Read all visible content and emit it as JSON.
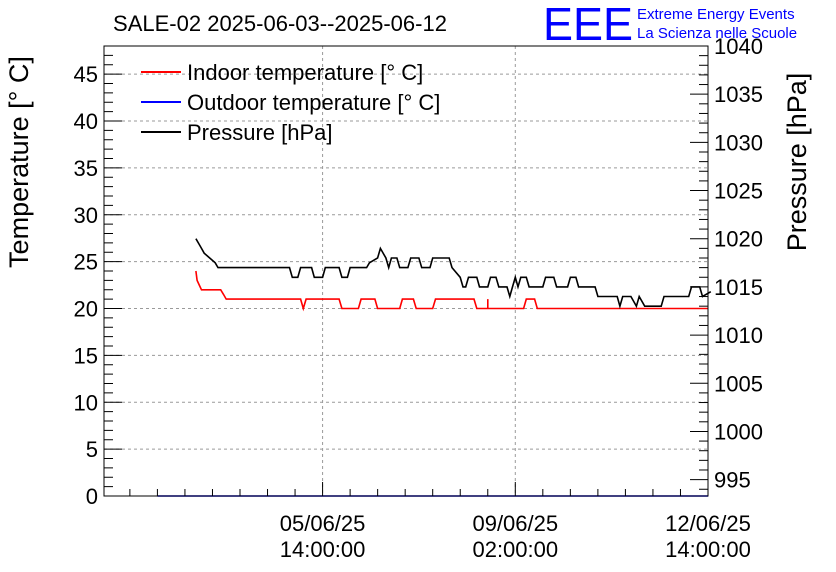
{
  "chart_data": {
    "type": "line",
    "title": "SALE-02 2025-06-03--2025-06-12",
    "ylabel": "Temperature [° C]",
    "y2label": "Pressure [hPa]",
    "ylim": [
      0,
      48
    ],
    "y2lim": [
      993.3,
      1040
    ],
    "yticks": [
      0,
      5,
      10,
      15,
      20,
      25,
      30,
      35,
      40,
      45
    ],
    "y2ticks": [
      995,
      1000,
      1005,
      1010,
      1015,
      1020,
      1025,
      1030,
      1035,
      1040
    ],
    "xlim": [
      -1.97,
      9.0
    ],
    "xticks": [
      {
        "x": 2.0,
        "date": "05/06/25",
        "time": "14:00:00"
      },
      {
        "x": 5.5,
        "date": "09/06/25",
        "time": "02:00:00"
      },
      {
        "x": 9.0,
        "date": "12/06/25",
        "time": "14:00:00"
      }
    ],
    "xunits": "days since 2025-06-03 14:00",
    "legend_position": "top-left",
    "series": [
      {
        "name": "Indoor temperature [° C]",
        "axis": "left",
        "color": "#ff0000",
        "x": [
          -0.3,
          -0.28,
          -0.24,
          -0.2,
          0.15,
          0.2,
          0.25,
          1.6,
          1.65,
          1.7,
          2.3,
          2.35,
          2.45,
          2.65,
          2.7,
          2.95,
          3.0,
          3.4,
          3.45,
          3.65,
          3.7,
          4.0,
          4.05,
          4.75,
          4.8,
          4.95,
          5.0,
          5.0,
          5.0,
          5.65,
          5.7,
          5.85,
          5.9,
          9.0
        ],
        "values": [
          24.0,
          23.0,
          22.5,
          22.0,
          22.0,
          21.5,
          21.0,
          21.0,
          20.0,
          21.0,
          21.0,
          20.0,
          20.0,
          20.0,
          21.0,
          21.0,
          20.0,
          20.0,
          21.0,
          21.0,
          20.0,
          20.0,
          21.0,
          21.0,
          20.0,
          20.0,
          20.0,
          21.0,
          20.0,
          20.0,
          21.0,
          21.0,
          20.0,
          20.0
        ]
      },
      {
        "name": "Outdoor temperature [° C]",
        "axis": "left",
        "color": "#0000ff",
        "x": [
          -1.0,
          9.0
        ],
        "values": [
          0.0,
          0.0
        ]
      },
      {
        "name": "Pressure [hPa]",
        "axis": "right",
        "color": "#000000",
        "x": [
          -0.3,
          -0.25,
          -0.2,
          -0.15,
          -0.05,
          0.05,
          0.1,
          1.4,
          1.45,
          1.55,
          1.6,
          1.65,
          1.8,
          1.85,
          2.0,
          2.05,
          2.3,
          2.35,
          2.45,
          2.5,
          2.8,
          2.85,
          3.0,
          3.05,
          3.15,
          3.2,
          3.25,
          3.35,
          3.4,
          3.55,
          3.6,
          3.75,
          3.8,
          3.95,
          4.0,
          4.3,
          4.35,
          4.5,
          4.55,
          4.6,
          4.65,
          4.8,
          4.85,
          5.0,
          5.05,
          5.15,
          5.2,
          5.35,
          5.4,
          5.45,
          5.5,
          5.55,
          5.6,
          5.7,
          5.75,
          6.0,
          6.05,
          6.2,
          6.25,
          6.45,
          6.5,
          6.6,
          6.65,
          6.95,
          7.0,
          7.35,
          7.4,
          7.45,
          7.6,
          7.7,
          7.75,
          7.85,
          8.15,
          8.2,
          8.65,
          8.7,
          8.85,
          8.9,
          9.05
        ],
        "values": [
          1020,
          1019.5,
          1019,
          1018.5,
          1018,
          1017.5,
          1017,
          1017,
          1016,
          1016,
          1017,
          1017,
          1017,
          1016,
          1016,
          1017,
          1017,
          1016,
          1016,
          1017,
          1017,
          1017.5,
          1018,
          1019,
          1018,
          1017,
          1018,
          1018,
          1017,
          1017,
          1018,
          1018,
          1017,
          1017,
          1018,
          1018,
          1017,
          1016,
          1015,
          1015,
          1016,
          1016,
          1015,
          1015,
          1016,
          1016,
          1015,
          1015,
          1014,
          1015,
          1016,
          1015,
          1016,
          1016,
          1015,
          1015,
          1016,
          1016,
          1015,
          1015,
          1016,
          1016,
          1015,
          1015,
          1014,
          1014,
          1013,
          1014,
          1014,
          1013,
          1014,
          1013,
          1013,
          1014,
          1014,
          1015,
          1015,
          1014,
          1014.5
        ]
      }
    ]
  },
  "logo": {
    "mark": "EEE",
    "line1": "Extreme Energy Events",
    "line2": "La Scienza nelle Scuole",
    "color": "#0000ff"
  }
}
